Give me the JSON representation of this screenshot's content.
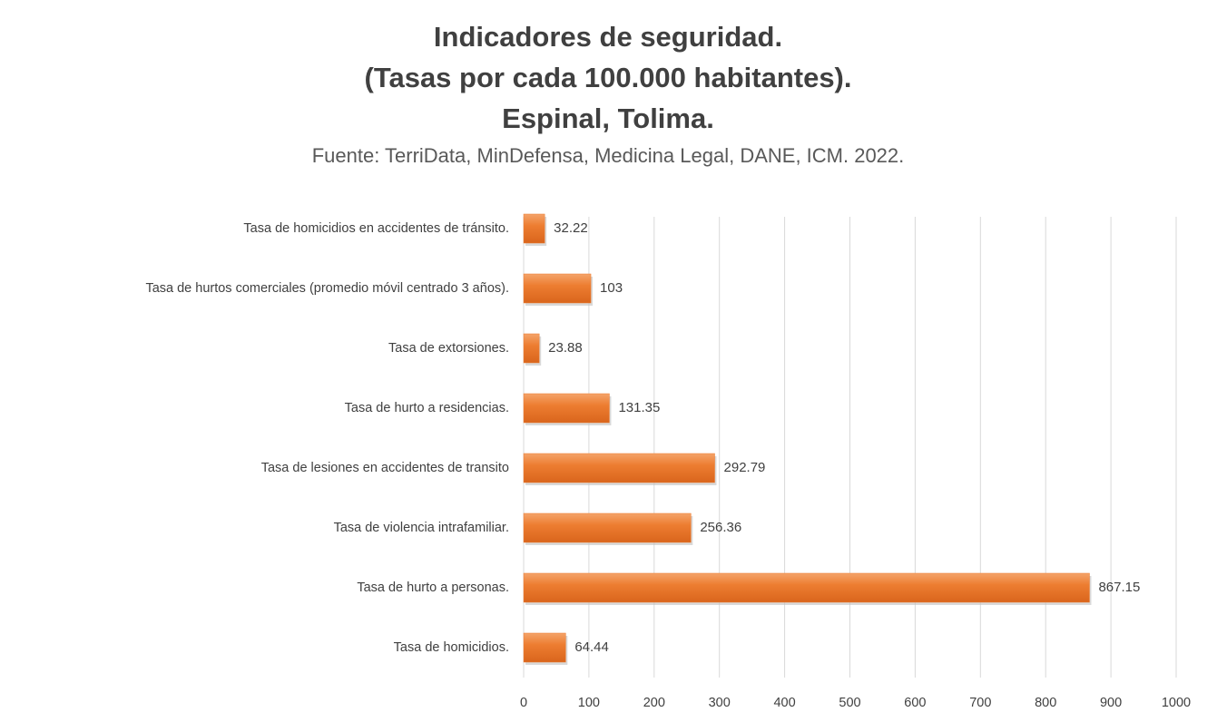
{
  "chart_data": {
    "type": "barh",
    "title": [
      "Indicadores de seguridad.",
      "(Tasas por cada 100.000 habitantes).",
      "Espinal, Tolima."
    ],
    "subtitle": "Fuente: TerriData, MinDefensa, Medicina Legal, DANE, ICM. 2022.",
    "categories": [
      "Tasa de homicidios en accidentes de tránsito.",
      "Tasa de hurtos comerciales (promedio móvil centrado 3 años).",
      "Tasa de extorsiones.",
      "Tasa de hurto a residencias.",
      "Tasa de lesiones en accidentes de transito",
      "Tasa de violencia intrafamiliar.",
      "Tasa de hurto a personas.",
      "Tasa de homicidios."
    ],
    "values": [
      32.22,
      103,
      23.88,
      131.35,
      292.79,
      256.36,
      867.15,
      64.44
    ],
    "color": "#ed7d31",
    "xlim": [
      0,
      1000
    ],
    "xticks": [
      0,
      100,
      200,
      300,
      400,
      500,
      600,
      700,
      800,
      900,
      1000
    ],
    "grid": true
  }
}
